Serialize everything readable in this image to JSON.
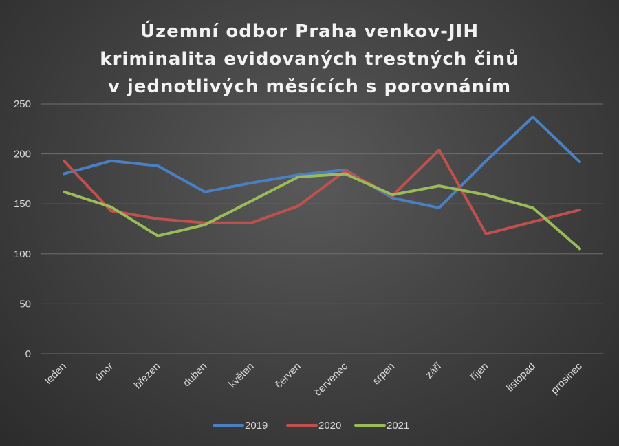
{
  "title_lines": [
    "Územní odbor Praha venkov-JIH",
    "kriminalita evidovaných trestných činů",
    "v jednotlivých měsících s porovnáním"
  ],
  "chart_data": {
    "type": "line",
    "title": "Územní odbor Praha venkov-JIH kriminalita evidovaných trestných činů v jednotlivých měsících s porovnáním",
    "categories": [
      "leden",
      "únor",
      "březen",
      "duben",
      "květen",
      "červen",
      "červenec",
      "srpen",
      "září",
      "říjen",
      "listopad",
      "prosinec"
    ],
    "series": [
      {
        "name": "2019",
        "color": "#4a7fc1",
        "values": [
          180,
          193,
          188,
          162,
          171,
          179,
          184,
          156,
          146,
          193,
          237,
          192
        ]
      },
      {
        "name": "2020",
        "color": "#c0504d",
        "values": [
          193,
          143,
          135,
          131,
          131,
          148,
          183,
          158,
          204,
          120,
          132,
          144
        ]
      },
      {
        "name": "2021",
        "color": "#9bbb59",
        "values": [
          162,
          147,
          118,
          129,
          153,
          177,
          180,
          159,
          168,
          159,
          146,
          105
        ]
      }
    ],
    "yticks": [
      "0",
      "50",
      "100",
      "150",
      "200",
      "250"
    ],
    "ylim": [
      0,
      250
    ],
    "grid": true,
    "legend_position": "bottom"
  }
}
